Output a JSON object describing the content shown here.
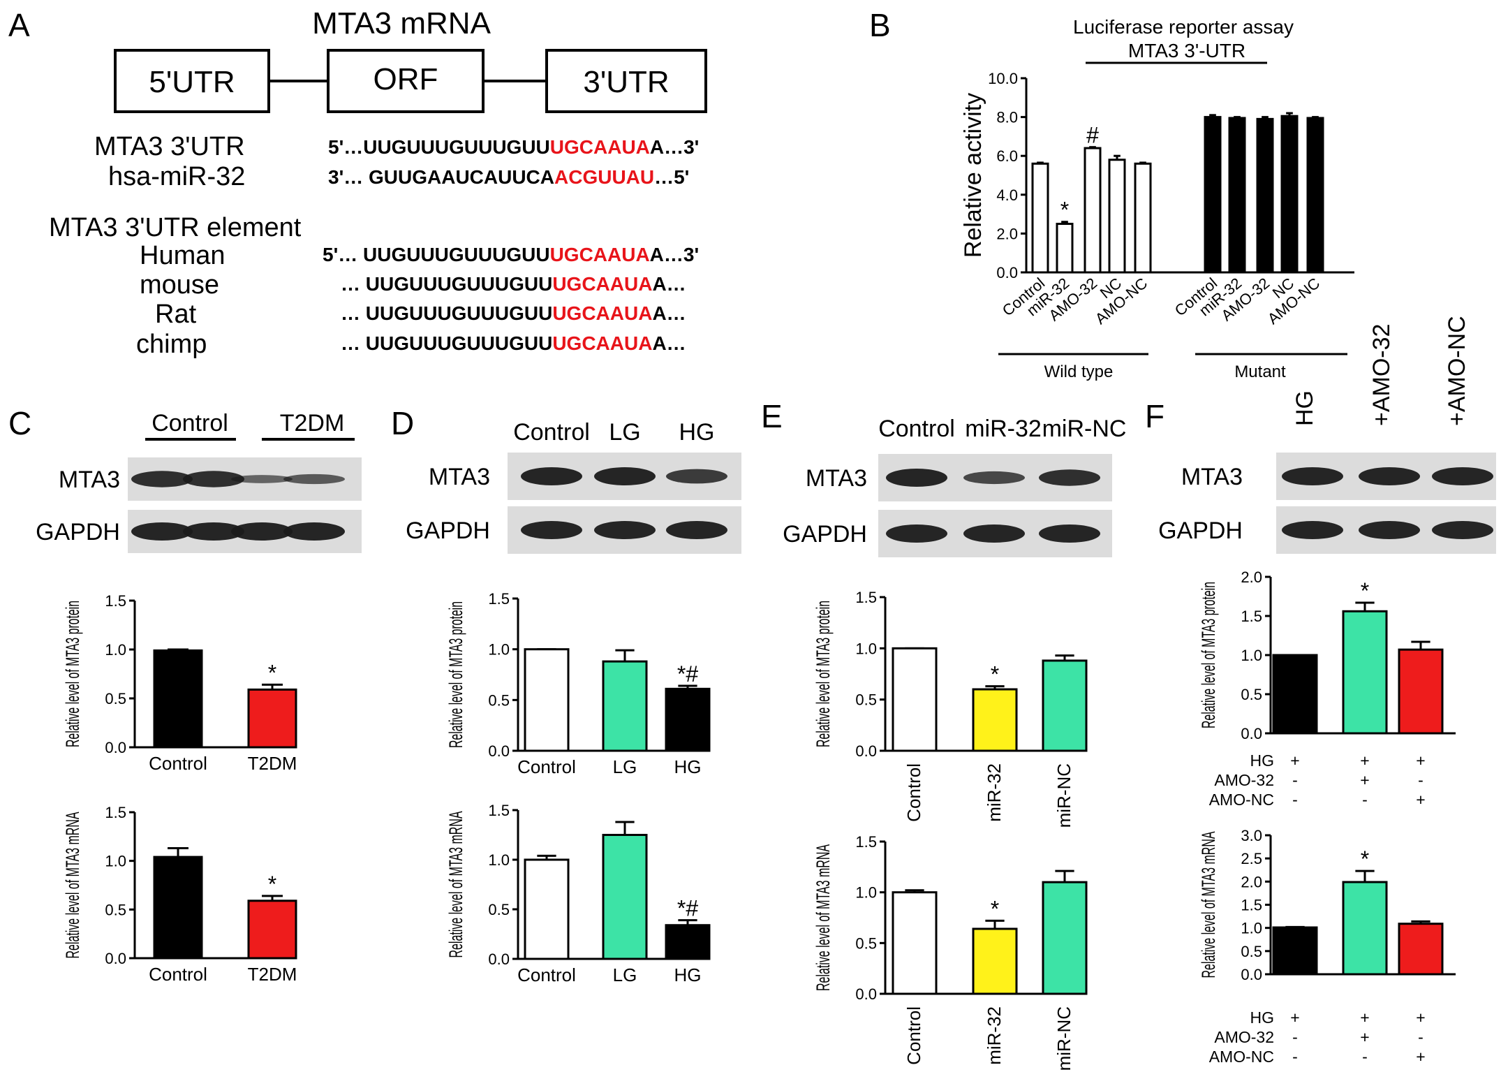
{
  "figure": {
    "panel_letters": [
      "A",
      "B",
      "C",
      "D",
      "E",
      "F"
    ],
    "panelA": {
      "title": "MTA3 mRNA",
      "boxes": [
        "5'UTR",
        "ORF",
        "3'UTR"
      ],
      "alignment": [
        {
          "label": "MTA3 3'UTR",
          "seq_prefix": "5'…UUGUUUGUUUGUU",
          "seq_red": "UGCAAUA",
          "seq_suffix": "A…3'"
        },
        {
          "label": "hsa-miR-32",
          "seq_prefix": "3'… GUUGAAUCAUUCA",
          "seq_red": "ACGUUAU",
          "seq_suffix": "…5'"
        }
      ],
      "element_title": "MTA3 3'UTR element",
      "species": [
        {
          "label": "Human",
          "seq_prefix": "5'… UUGUUUGUUUGUU",
          "seq_red": "UGCAAUA",
          "seq_suffix": "A…3'"
        },
        {
          "label": "mouse",
          "seq_prefix": "… UUGUUUGUUUGUU",
          "seq_red": "UGCAAUA",
          "seq_suffix": "A…"
        },
        {
          "label": "Rat",
          "seq_prefix": "… UUGUUUGUUUGUU",
          "seq_red": "UGCAAUA",
          "seq_suffix": "A…"
        },
        {
          "label": "chimp",
          "seq_prefix": "… UUGUUUGUUUGUU",
          "seq_red": "UGCAAUA",
          "seq_suffix": "A…"
        }
      ]
    },
    "blots": {
      "C": {
        "header": [
          "Control",
          "T2DM"
        ],
        "rows": [
          "MTA3",
          "GAPDH"
        ]
      },
      "D": {
        "header": [
          "Control",
          "LG",
          "HG"
        ],
        "rows": [
          "MTA3",
          "GAPDH"
        ]
      },
      "E": {
        "header": [
          "Control",
          "miR-32",
          "miR-NC"
        ],
        "rows": [
          "MTA3",
          "GAPDH"
        ]
      },
      "F": {
        "header": [
          "HG",
          "+AMO-32",
          "+AMO-NC"
        ],
        "rows": [
          "MTA3",
          "GAPDH"
        ]
      }
    },
    "groupsF": {
      "rows": [
        "HG",
        "AMO-32",
        "AMO-NC"
      ],
      "signs": [
        [
          "+",
          "+",
          "+"
        ],
        [
          "-",
          "+",
          "-"
        ],
        [
          "-",
          "-",
          "+"
        ]
      ]
    }
  },
  "colors": {
    "black": "#000000",
    "red": "#ee1c1c",
    "green": "#3de3a6",
    "yellow": "#fff21a",
    "white": "#ffffff",
    "seq_red": "#e8141a"
  },
  "chart_data": [
    {
      "id": "B",
      "type": "bar",
      "title": "Luciferase reporter assay",
      "subtitle": "MTA3 3'-UTR",
      "ylabel": "Relative activity",
      "ylim": [
        0,
        10
      ],
      "yticks": [
        "0.0",
        "2.0",
        "4.0",
        "6.0",
        "8.0",
        "10.0"
      ],
      "categories": [
        "Control",
        "miR-32",
        "AMO-32",
        "NC",
        "AMO-NC",
        "Control",
        "miR-32",
        "AMO-32",
        "NC",
        "AMO-NC"
      ],
      "values": [
        5.6,
        2.5,
        6.4,
        5.8,
        5.6,
        8.0,
        7.95,
        7.9,
        8.05,
        7.95
      ],
      "errors": [
        0.05,
        0.1,
        0.05,
        0.2,
        0.05,
        0.1,
        0.05,
        0.1,
        0.15,
        0.05
      ],
      "colors": [
        "#ffffff",
        "#ffffff",
        "#ffffff",
        "#ffffff",
        "#ffffff",
        "#000000",
        "#000000",
        "#000000",
        "#000000",
        "#000000"
      ],
      "annotations": [
        "",
        "*",
        "#",
        "",
        "",
        "",
        "",
        "",
        "",
        ""
      ],
      "groups": [
        "Wild type",
        "Mutant"
      ]
    },
    {
      "id": "C-protein",
      "type": "bar",
      "ylabel": "Relative level of MTA3 protein",
      "ylim": [
        0,
        1.5
      ],
      "yticks": [
        "0.0",
        "0.5",
        "1.0",
        "1.5"
      ],
      "categories": [
        "Control",
        "T2DM"
      ],
      "values": [
        0.99,
        0.59
      ],
      "errors": [
        0.01,
        0.05
      ],
      "colors": [
        "#000000",
        "#ee1c1c"
      ],
      "annotations": [
        "",
        "*"
      ]
    },
    {
      "id": "C-mRNA",
      "type": "bar",
      "ylabel": "Relative level of MTA3 mRNA",
      "ylim": [
        0,
        1.5
      ],
      "yticks": [
        "0.0",
        "0.5",
        "1.0",
        "1.5"
      ],
      "categories": [
        "Control",
        "T2DM"
      ],
      "values": [
        1.04,
        0.59
      ],
      "errors": [
        0.09,
        0.05
      ],
      "colors": [
        "#000000",
        "#ee1c1c"
      ],
      "annotations": [
        "",
        "*"
      ]
    },
    {
      "id": "D-protein",
      "type": "bar",
      "ylabel": "Relative level of MTA3 protein",
      "ylim": [
        0,
        1.5
      ],
      "yticks": [
        "0.0",
        "0.5",
        "1.0",
        "1.5"
      ],
      "categories": [
        "Control",
        "LG",
        "HG"
      ],
      "values": [
        1.0,
        0.88,
        0.61
      ],
      "errors": [
        0.0,
        0.11,
        0.03
      ],
      "colors": [
        "#ffffff",
        "#3de3a6",
        "#000000"
      ],
      "annotations": [
        "",
        "",
        "*#"
      ]
    },
    {
      "id": "D-mRNA",
      "type": "bar",
      "ylabel": "Relative level of MTA3 mRNA",
      "ylim": [
        0,
        1.5
      ],
      "yticks": [
        "0.0",
        "0.5",
        "1.0",
        "1.5"
      ],
      "categories": [
        "Control",
        "LG",
        "HG"
      ],
      "values": [
        1.0,
        1.25,
        0.34
      ],
      "errors": [
        0.04,
        0.13,
        0.05
      ],
      "colors": [
        "#ffffff",
        "#3de3a6",
        "#000000"
      ],
      "annotations": [
        "",
        "",
        "*#"
      ]
    },
    {
      "id": "E-protein",
      "type": "bar",
      "ylabel": "Relative level of MTA3 protein",
      "ylim": [
        0,
        1.5
      ],
      "yticks": [
        "0.0",
        "0.5",
        "1.0",
        "1.5"
      ],
      "categories": [
        "Control",
        "miR-32",
        "miR-NC"
      ],
      "values": [
        1.0,
        0.6,
        0.88
      ],
      "errors": [
        0.0,
        0.03,
        0.05
      ],
      "colors": [
        "#ffffff",
        "#fff21a",
        "#3de3a6"
      ],
      "annotations": [
        "",
        "*",
        ""
      ]
    },
    {
      "id": "E-mRNA",
      "type": "bar",
      "ylabel": "Relative level of MTA3 mRNA",
      "ylim": [
        0,
        1.5
      ],
      "yticks": [
        "0.0",
        "0.5",
        "1.0",
        "1.5"
      ],
      "categories": [
        "Control",
        "miR-32",
        "miR-NC"
      ],
      "values": [
        1.0,
        0.64,
        1.1
      ],
      "errors": [
        0.02,
        0.08,
        0.11
      ],
      "colors": [
        "#ffffff",
        "#fff21a",
        "#3de3a6"
      ],
      "annotations": [
        "",
        "*",
        ""
      ]
    },
    {
      "id": "F-protein",
      "type": "bar",
      "ylabel": "Relative level of MTA3 protein",
      "ylim": [
        0,
        2.0
      ],
      "yticks": [
        "0.0",
        "0.5",
        "1.0",
        "1.5",
        "2.0"
      ],
      "categories": [
        "",
        "",
        ""
      ],
      "values": [
        1.0,
        1.56,
        1.07
      ],
      "errors": [
        0.0,
        0.11,
        0.1
      ],
      "colors": [
        "#000000",
        "#3de3a6",
        "#ee1c1c"
      ],
      "annotations": [
        "",
        "*",
        ""
      ]
    },
    {
      "id": "F-mRNA",
      "type": "bar",
      "ylabel": "Relative level of MTA3 mRNA",
      "ylim": [
        0,
        3.0
      ],
      "yticks": [
        "0.0",
        "0.5",
        "1.0",
        "1.5",
        "2.0",
        "2.5",
        "3.0"
      ],
      "categories": [
        "",
        "",
        ""
      ],
      "values": [
        1.01,
        1.99,
        1.09
      ],
      "errors": [
        0.01,
        0.24,
        0.05
      ],
      "colors": [
        "#000000",
        "#3de3a6",
        "#ee1c1c"
      ],
      "annotations": [
        "",
        "*",
        ""
      ]
    }
  ]
}
